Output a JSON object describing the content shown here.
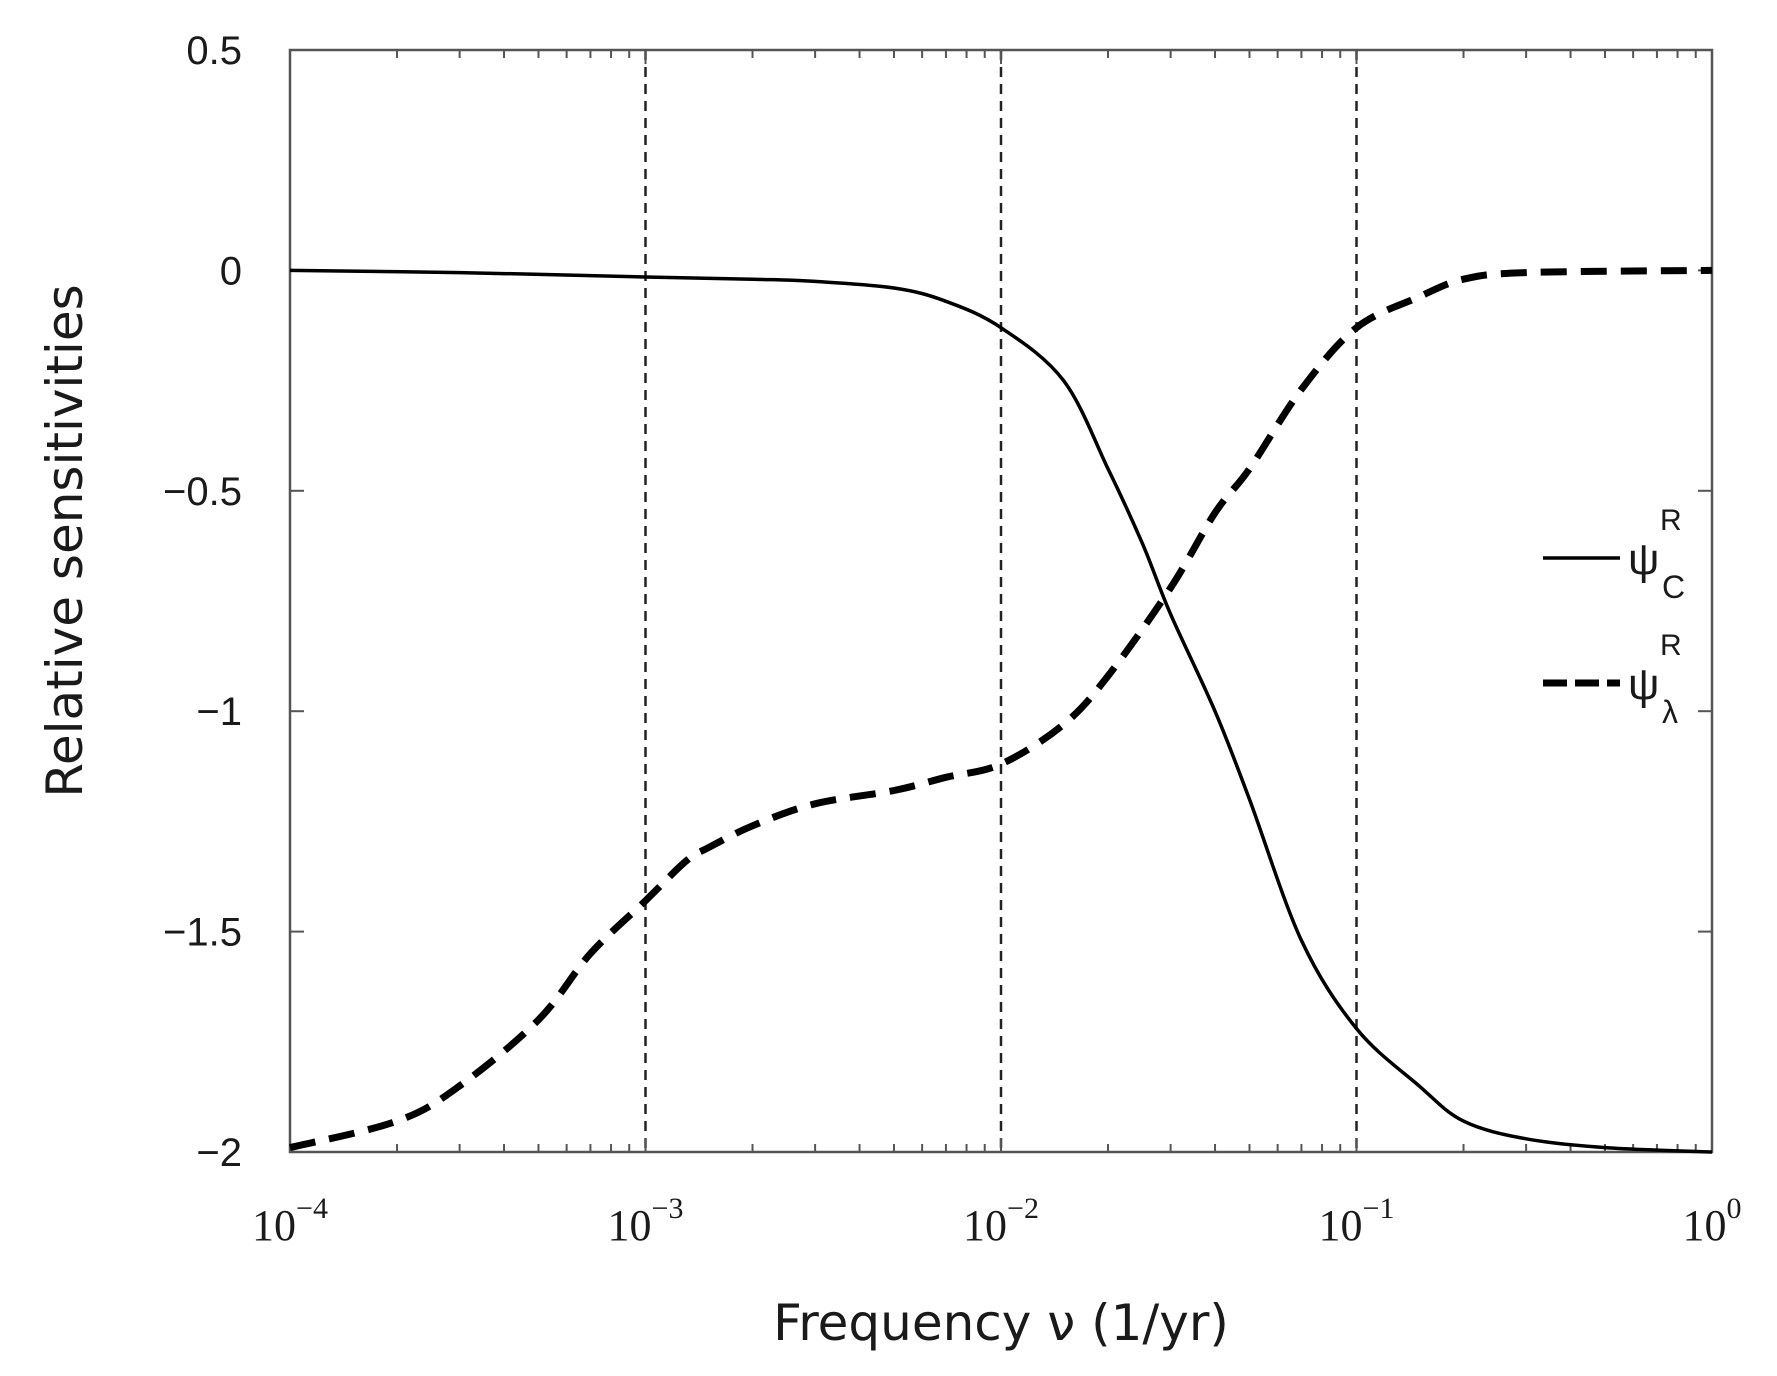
{
  "chart_data": {
    "type": "line",
    "title": "",
    "xlabel": "Frequency ν (1/yr)",
    "ylabel": "Relative sensitivities",
    "xscale": "log",
    "xlim": [
      0.0001,
      1
    ],
    "ylim": [
      -2,
      0.5
    ],
    "x_ticks": [
      0.0001,
      0.001,
      0.01,
      0.1,
      1
    ],
    "x_tick_labels": [
      {
        "base": "10",
        "exp": "−4"
      },
      {
        "base": "10",
        "exp": "−3"
      },
      {
        "base": "10",
        "exp": "−2"
      },
      {
        "base": "10",
        "exp": "−1"
      },
      {
        "base": "10",
        "exp": "0"
      }
    ],
    "y_ticks": [
      0.5,
      0,
      -0.5,
      -1,
      -1.5,
      -2
    ],
    "y_tick_labels": [
      "0.5",
      "0",
      "−0.5",
      "−1",
      "−1.5",
      "−2"
    ],
    "reference_lines_x": [
      0.001,
      0.01,
      0.1
    ],
    "legend_position": "right",
    "series": [
      {
        "name": "psi_C_R",
        "legend": {
          "symbol": "ψ",
          "sup": "R",
          "sub": "C"
        },
        "style": "solid",
        "color": "#000000",
        "points": [
          [
            0.0001,
            0.0
          ],
          [
            0.0003,
            -0.005
          ],
          [
            0.001,
            -0.015
          ],
          [
            0.002,
            -0.02
          ],
          [
            0.003,
            -0.025
          ],
          [
            0.005,
            -0.04
          ],
          [
            0.007,
            -0.07
          ],
          [
            0.01,
            -0.13
          ],
          [
            0.015,
            -0.25
          ],
          [
            0.02,
            -0.45
          ],
          [
            0.025,
            -0.62
          ],
          [
            0.03,
            -0.78
          ],
          [
            0.04,
            -1.0
          ],
          [
            0.05,
            -1.2
          ],
          [
            0.07,
            -1.52
          ],
          [
            0.1,
            -1.72
          ],
          [
            0.15,
            -1.85
          ],
          [
            0.2,
            -1.93
          ],
          [
            0.3,
            -1.97
          ],
          [
            0.5,
            -1.99
          ],
          [
            1.0,
            -2.0
          ]
        ]
      },
      {
        "name": "psi_lambda_R",
        "legend": {
          "symbol": "ψ",
          "sup": "R",
          "sub": "λ"
        },
        "style": "dashed",
        "color": "#000000",
        "points": [
          [
            0.0001,
            -1.99
          ],
          [
            0.0002,
            -1.93
          ],
          [
            0.0003,
            -1.85
          ],
          [
            0.0005,
            -1.7
          ],
          [
            0.0007,
            -1.55
          ],
          [
            0.001,
            -1.43
          ],
          [
            0.0013,
            -1.34
          ],
          [
            0.0015,
            -1.31
          ],
          [
            0.002,
            -1.26
          ],
          [
            0.003,
            -1.21
          ],
          [
            0.005,
            -1.18
          ],
          [
            0.007,
            -1.15
          ],
          [
            0.01,
            -1.12
          ],
          [
            0.015,
            -1.03
          ],
          [
            0.02,
            -0.92
          ],
          [
            0.03,
            -0.72
          ],
          [
            0.04,
            -0.55
          ],
          [
            0.05,
            -0.45
          ],
          [
            0.07,
            -0.27
          ],
          [
            0.1,
            -0.13
          ],
          [
            0.15,
            -0.06
          ],
          [
            0.2,
            -0.02
          ],
          [
            0.3,
            -0.005
          ],
          [
            1.0,
            0.0
          ]
        ]
      }
    ]
  }
}
